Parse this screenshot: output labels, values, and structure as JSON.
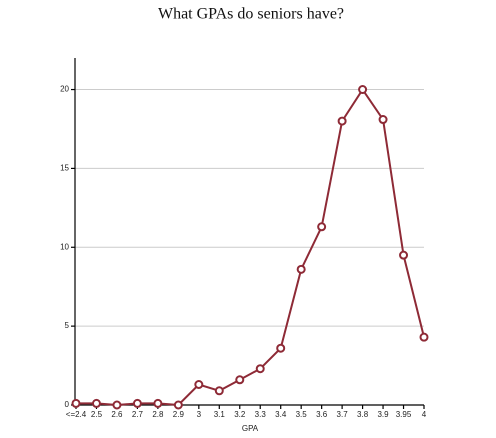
{
  "chart_data": {
    "type": "line",
    "title": "What GPAs do seniors have?",
    "x_label": "GPA",
    "categories": [
      "<=2.4",
      "2.5",
      "2.6",
      "2.7",
      "2.8",
      "2.9",
      "3",
      "3.1",
      "3.2",
      "3.3",
      "3.4",
      "3.5",
      "3.6",
      "3.7",
      "3.8",
      "3.9",
      "3.95",
      "4"
    ],
    "values": [
      0.1,
      0.1,
      0,
      0.1,
      0.1,
      0,
      1.3,
      0.9,
      1.6,
      2.3,
      3.6,
      8.6,
      11.3,
      18,
      20,
      18.1,
      9.5,
      4.3
    ],
    "color": "#8e2a36",
    "ylim": [
      0,
      22
    ],
    "yticks": [
      0,
      5,
      10,
      15,
      20
    ],
    "grid": true
  }
}
